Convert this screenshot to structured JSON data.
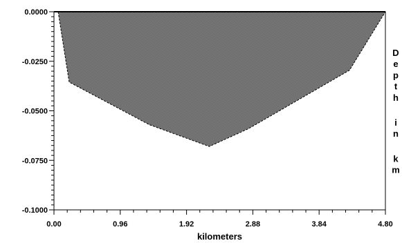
{
  "chart_data": {
    "type": "area",
    "title": "",
    "xlabel": "kilometers",
    "ylabel": "Depth in km",
    "xlim": [
      0.0,
      4.8
    ],
    "ylim": [
      -0.1,
      0.0
    ],
    "x_ticks": [
      "0.00",
      "0.96",
      "1.92",
      "2.88",
      "3.84",
      "4.80"
    ],
    "y_ticks": [
      "0.0000",
      "-0.0250",
      "-0.0500",
      "-0.0750",
      "-0.1000"
    ],
    "x_tick_values": [
      0.0,
      0.96,
      1.92,
      2.88,
      3.84,
      4.8
    ],
    "y_tick_values": [
      0.0,
      -0.025,
      -0.05,
      -0.075,
      -0.1
    ],
    "series": [
      {
        "x": [
          0.06,
          0.22,
          1.38,
          2.25,
          2.82,
          4.28,
          4.8
        ],
        "y": [
          0.0,
          -0.0355,
          -0.057,
          -0.068,
          -0.059,
          -0.0295,
          0.0
        ]
      }
    ],
    "fill_color": "#7a7a7a",
    "grid": false
  }
}
